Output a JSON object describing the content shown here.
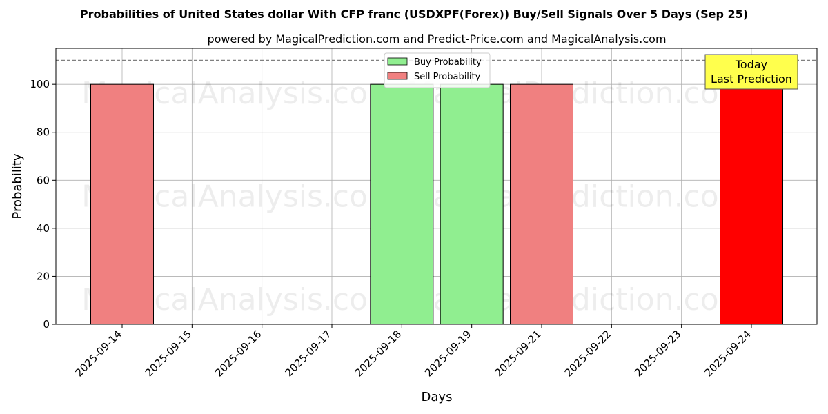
{
  "chart_data": {
    "type": "bar",
    "title": "Probabilities of United States dollar With CFP franc (USDXPF(Forex)) Buy/Sell Signals Over 5 Days (Sep 25)",
    "subtitle": "powered by MagicalPrediction.com and Predict-Price.com and MagicalAnalysis.com",
    "xlabel": "Days",
    "ylabel": "Probability",
    "ylim": [
      0,
      115
    ],
    "yticks": [
      0,
      20,
      40,
      60,
      80,
      100
    ],
    "grid": true,
    "legend_position": "top-center",
    "reference_line": 110,
    "categories": [
      "2025-09-14",
      "2025-09-15",
      "2025-09-16",
      "2025-09-17",
      "2025-09-18",
      "2025-09-19",
      "2025-09-21",
      "2025-09-22",
      "2025-09-23",
      "2025-09-24"
    ],
    "series": [
      {
        "name": "Buy Probability",
        "color": "#90ee90",
        "values": [
          0,
          0,
          0,
          0,
          100,
          100,
          0,
          0,
          0,
          0
        ]
      },
      {
        "name": "Sell Probability",
        "color": "#f08080",
        "values": [
          100,
          0,
          0,
          0,
          0,
          0,
          100,
          0,
          0,
          100
        ]
      }
    ],
    "highlight": {
      "category": "2025-09-24",
      "series": "Sell Probability",
      "color": "#ff0000"
    },
    "annotation": {
      "lines": [
        "Today",
        "Last Prediction"
      ],
      "background": "#ffff4d"
    },
    "watermarks": [
      "MagicalAnalysis.com",
      "MagicalPrediction.com"
    ]
  }
}
